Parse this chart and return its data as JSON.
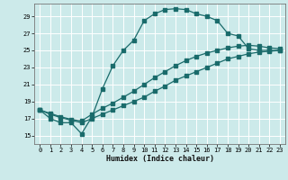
{
  "xlabel": "Humidex (Indice chaleur)",
  "bg_color": "#cceaea",
  "grid_color": "#ffffff",
  "line_color": "#1a6b6b",
  "xlim": [
    -0.5,
    23.5
  ],
  "ylim": [
    14.0,
    30.5
  ],
  "xticks": [
    0,
    1,
    2,
    3,
    4,
    5,
    6,
    7,
    8,
    9,
    10,
    11,
    12,
    13,
    14,
    15,
    16,
    17,
    18,
    19,
    20,
    21,
    22,
    23
  ],
  "yticks": [
    15,
    17,
    19,
    21,
    23,
    25,
    27,
    29
  ],
  "line1_x": [
    0,
    1,
    2,
    3,
    4,
    5,
    6,
    7,
    8,
    9,
    10,
    11,
    12,
    13,
    14,
    15,
    16,
    17,
    18,
    19,
    20,
    21,
    22,
    23
  ],
  "line1_y": [
    18.0,
    17.0,
    16.5,
    16.5,
    15.2,
    17.2,
    20.5,
    23.2,
    25.0,
    26.2,
    28.5,
    29.3,
    29.8,
    29.9,
    29.8,
    29.3,
    29.0,
    28.5,
    27.0,
    26.7,
    25.2,
    25.0,
    25.0,
    25.0
  ],
  "line2_x": [
    0,
    1,
    2,
    3,
    4,
    5,
    6,
    7,
    8,
    9,
    10,
    11,
    12,
    13,
    14,
    15,
    16,
    17,
    18,
    19,
    20,
    21,
    22,
    23
  ],
  "line2_y": [
    18.0,
    17.5,
    17.1,
    16.8,
    16.5,
    17.0,
    17.5,
    18.0,
    18.5,
    19.0,
    19.5,
    20.2,
    20.8,
    21.5,
    22.0,
    22.5,
    23.0,
    23.5,
    24.0,
    24.3,
    24.6,
    24.8,
    24.9,
    25.0
  ],
  "line3_x": [
    0,
    1,
    2,
    3,
    4,
    5,
    6,
    7,
    8,
    9,
    10,
    11,
    12,
    13,
    14,
    15,
    16,
    17,
    18,
    19,
    20,
    21,
    22,
    23
  ],
  "line3_y": [
    18.0,
    17.6,
    17.2,
    16.9,
    16.7,
    17.5,
    18.2,
    18.8,
    19.5,
    20.2,
    21.0,
    21.8,
    22.5,
    23.2,
    23.8,
    24.3,
    24.7,
    25.0,
    25.3,
    25.5,
    25.6,
    25.5,
    25.3,
    25.2
  ]
}
